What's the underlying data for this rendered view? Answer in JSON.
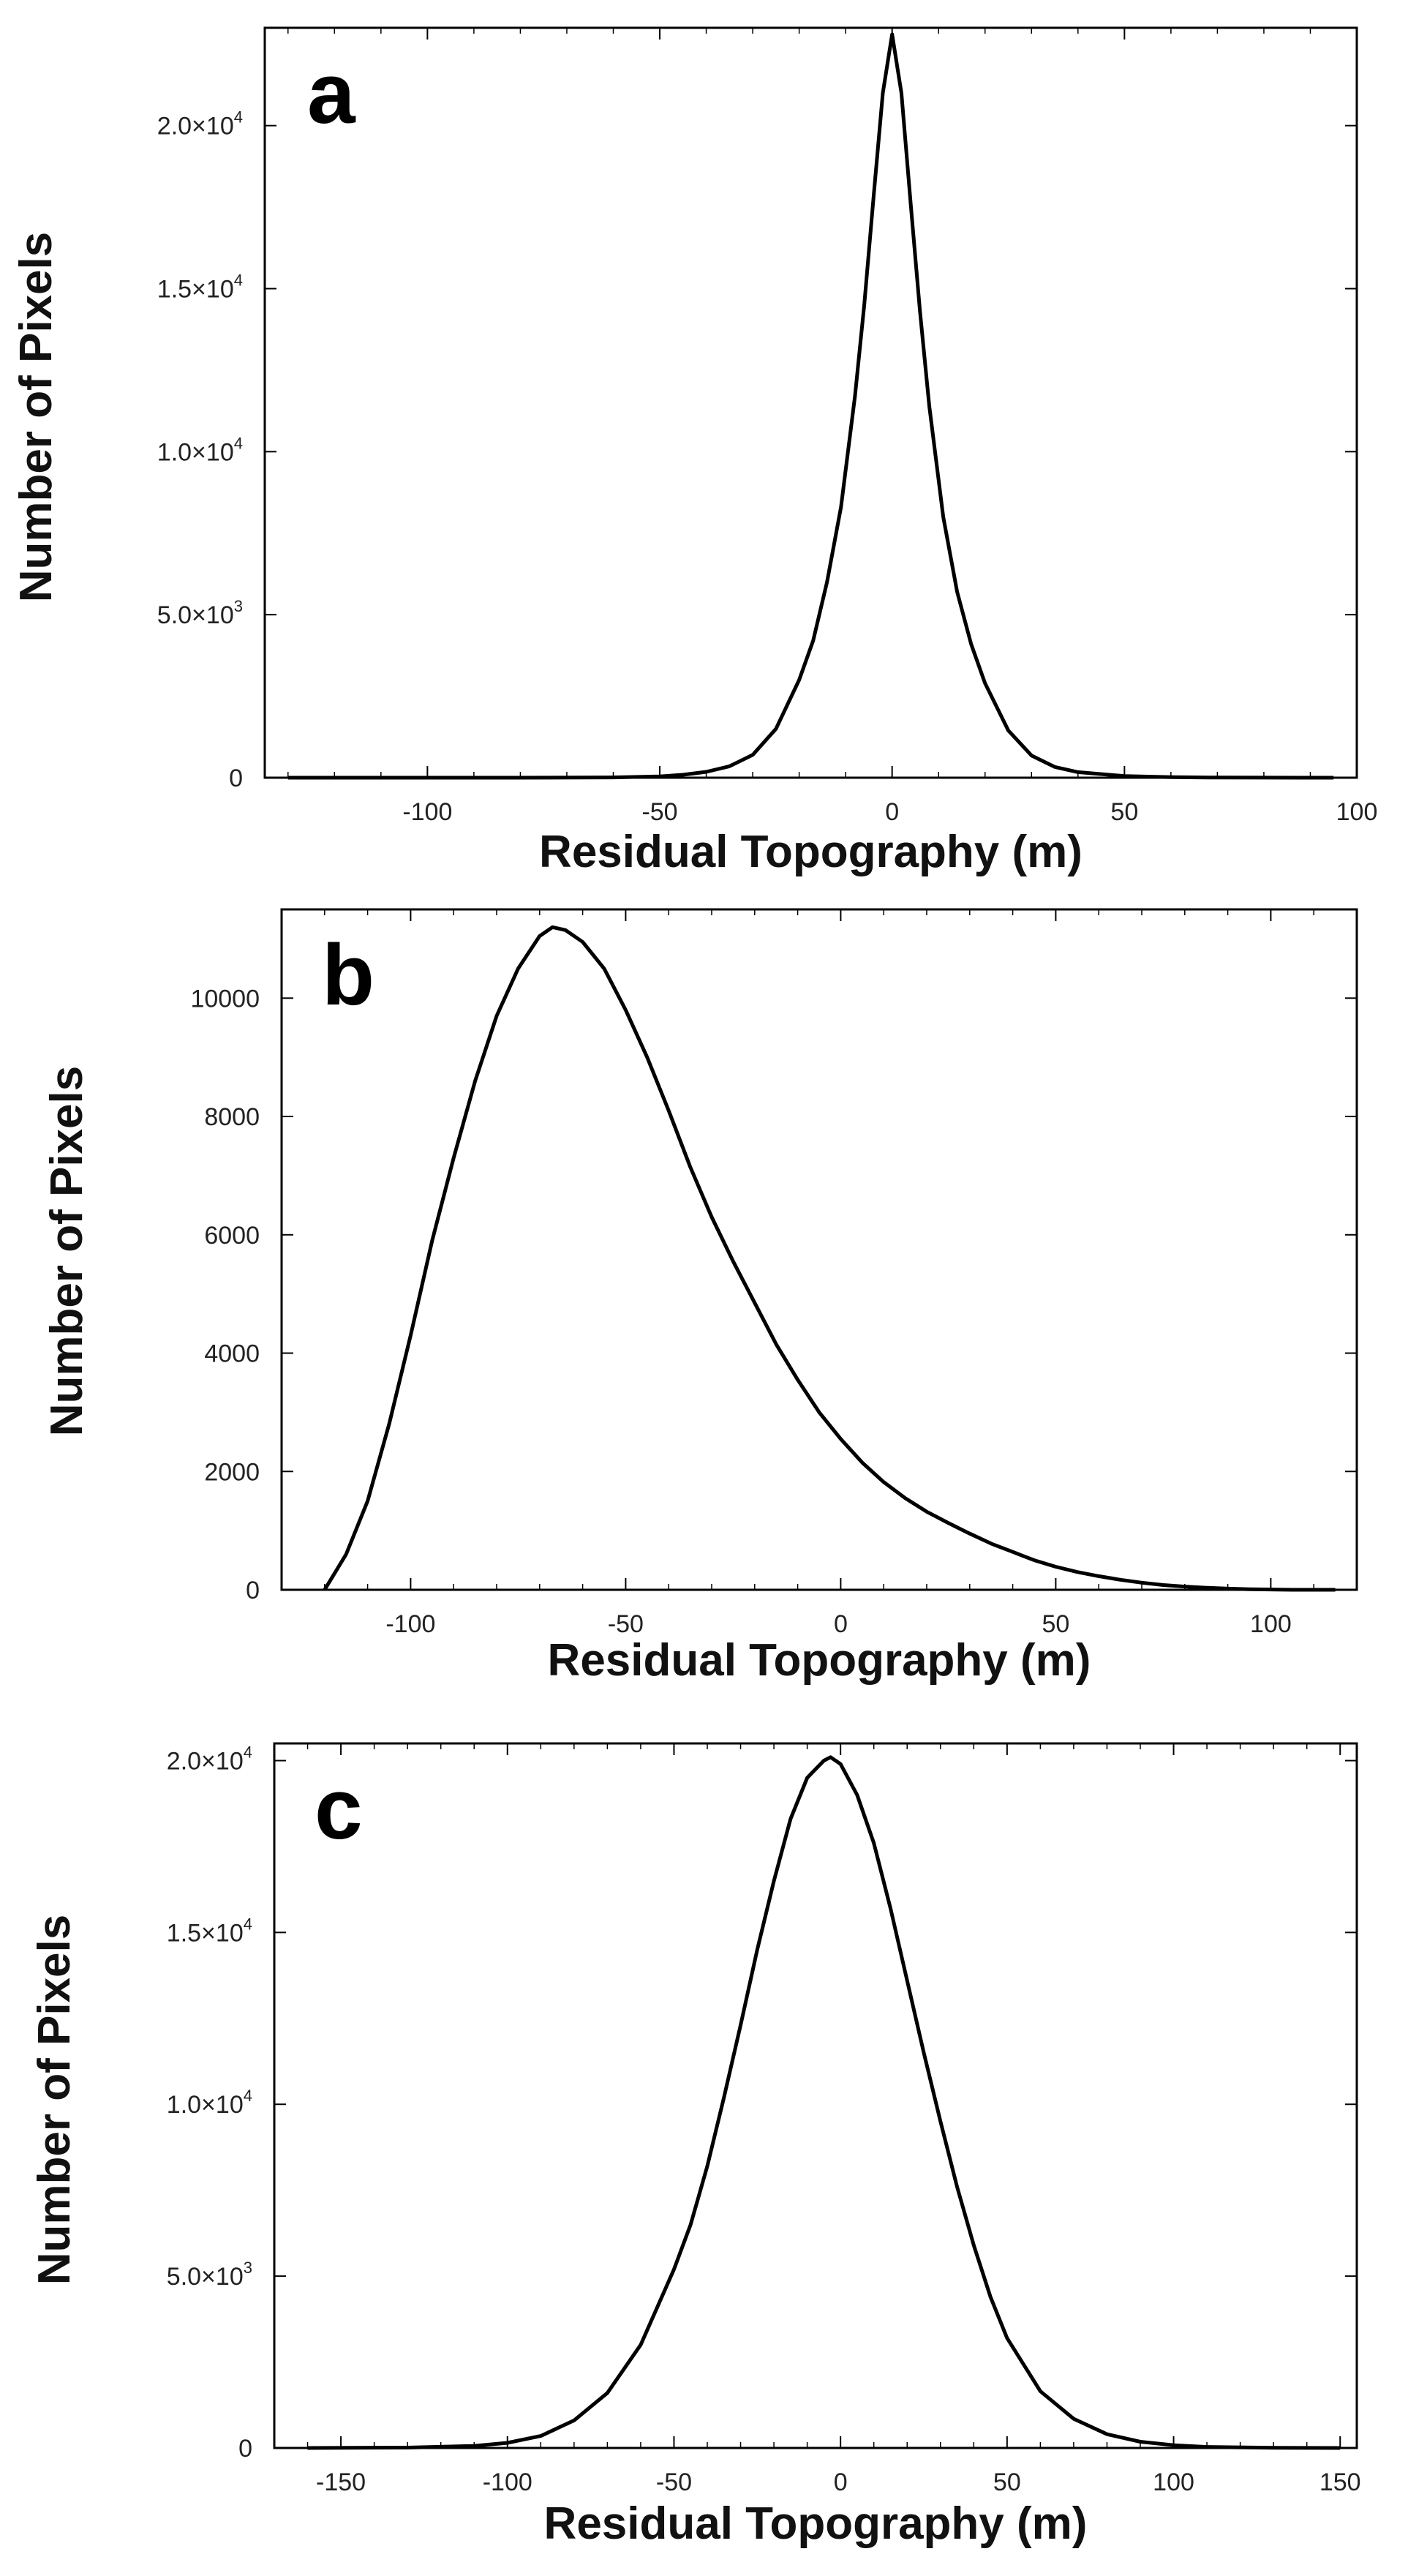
{
  "chart_data": [
    {
      "type": "line",
      "panel_label": "a",
      "xlabel": "Residual Topography (m)",
      "ylabel": "Number of Pixels",
      "xlim": [
        -135,
        100
      ],
      "ylim": [
        0,
        23000
      ],
      "xticks": [
        -100,
        -50,
        0,
        50,
        100
      ],
      "xtick_labels": [
        "-100",
        "-50",
        "0",
        "50",
        "100"
      ],
      "yticks": [
        0,
        5000,
        10000,
        15000,
        20000
      ],
      "ytick_labels": [
        {
          "text": "0",
          "mantissa": "",
          "exp": ""
        },
        {
          "text": "",
          "mantissa": "5.0×10",
          "exp": "3"
        },
        {
          "text": "",
          "mantissa": "1.0×10",
          "exp": "4"
        },
        {
          "text": "",
          "mantissa": "1.5×10",
          "exp": "4"
        },
        {
          "text": "",
          "mantissa": "2.0×10",
          "exp": "4"
        }
      ],
      "series": [
        {
          "name": "histogram",
          "x": [
            -130,
            -100,
            -80,
            -60,
            -50,
            -45,
            -40,
            -35,
            -30,
            -25,
            -20,
            -17,
            -14,
            -11,
            -8,
            -6,
            -4,
            -2,
            0,
            2,
            4,
            6,
            8,
            11,
            14,
            17,
            20,
            25,
            30,
            35,
            40,
            50,
            60,
            70,
            80,
            90,
            95
          ],
          "values": [
            0,
            0,
            0,
            10,
            40,
            90,
            180,
            350,
            700,
            1500,
            3000,
            4200,
            6000,
            8300,
            11700,
            14500,
            17800,
            21000,
            22800,
            21000,
            17600,
            14300,
            11400,
            8000,
            5700,
            4100,
            2900,
            1450,
            680,
            330,
            170,
            50,
            15,
            5,
            2,
            0,
            0
          ]
        }
      ]
    },
    {
      "type": "line",
      "panel_label": "b",
      "xlabel": "Residual Topography (m)",
      "ylabel": "Number of Pixels",
      "xlim": [
        -130,
        120
      ],
      "ylim": [
        0,
        11500
      ],
      "xticks": [
        -100,
        -50,
        0,
        50,
        100
      ],
      "xtick_labels": [
        "-100",
        "-50",
        "0",
        "50",
        "100"
      ],
      "yticks": [
        0,
        2000,
        4000,
        6000,
        8000,
        10000
      ],
      "ytick_labels": [
        {
          "text": "0",
          "mantissa": "",
          "exp": ""
        },
        {
          "text": "2000",
          "mantissa": "",
          "exp": ""
        },
        {
          "text": "4000",
          "mantissa": "",
          "exp": ""
        },
        {
          "text": "6000",
          "mantissa": "",
          "exp": ""
        },
        {
          "text": "8000",
          "mantissa": "",
          "exp": ""
        },
        {
          "text": "10000",
          "mantissa": "",
          "exp": ""
        }
      ],
      "series": [
        {
          "name": "histogram",
          "x": [
            -120,
            -115,
            -110,
            -105,
            -100,
            -95,
            -90,
            -85,
            -80,
            -75,
            -70,
            -67,
            -64,
            -60,
            -55,
            -50,
            -45,
            -40,
            -35,
            -30,
            -25,
            -20,
            -15,
            -10,
            -5,
            0,
            5,
            10,
            15,
            20,
            25,
            30,
            35,
            40,
            45,
            50,
            55,
            60,
            65,
            70,
            75,
            80,
            85,
            90,
            95,
            100,
            105,
            110,
            115
          ],
          "values": [
            0,
            600,
            1500,
            2800,
            4300,
            5900,
            7300,
            8600,
            9700,
            10500,
            11050,
            11200,
            11150,
            10950,
            10500,
            9800,
            9000,
            8100,
            7150,
            6300,
            5550,
            4850,
            4150,
            3550,
            3000,
            2550,
            2150,
            1820,
            1550,
            1320,
            1130,
            950,
            780,
            640,
            500,
            390,
            300,
            230,
            170,
            120,
            80,
            55,
            35,
            20,
            10,
            5,
            0,
            0,
            0
          ]
        }
      ]
    },
    {
      "type": "line",
      "panel_label": "c",
      "xlabel": "Residual Topography (m)",
      "ylabel": "Number of Pixels",
      "xlim": [
        -170,
        155
      ],
      "ylim": [
        0,
        20500
      ],
      "xticks": [
        -150,
        -100,
        -50,
        0,
        50,
        100,
        150
      ],
      "xtick_labels": [
        "-150",
        "-100",
        "-50",
        "0",
        "50",
        "100",
        "150"
      ],
      "yticks": [
        0,
        5000,
        10000,
        15000,
        20000
      ],
      "ytick_labels": [
        {
          "text": "0",
          "mantissa": "",
          "exp": ""
        },
        {
          "text": "",
          "mantissa": "5.0×10",
          "exp": "3"
        },
        {
          "text": "",
          "mantissa": "1.0×10",
          "exp": "4"
        },
        {
          "text": "",
          "mantissa": "1.5×10",
          "exp": "4"
        },
        {
          "text": "",
          "mantissa": "2.0×10",
          "exp": "4"
        }
      ],
      "series": [
        {
          "name": "histogram",
          "x": [
            -160,
            -130,
            -110,
            -100,
            -90,
            -80,
            -70,
            -60,
            -50,
            -45,
            -40,
            -35,
            -30,
            -25,
            -20,
            -15,
            -10,
            -5,
            -3,
            0,
            5,
            10,
            15,
            20,
            25,
            30,
            35,
            40,
            45,
            50,
            60,
            70,
            80,
            90,
            100,
            110,
            130,
            150
          ],
          "values": [
            0,
            10,
            60,
            150,
            350,
            800,
            1600,
            3000,
            5200,
            6500,
            8200,
            10200,
            12300,
            14500,
            16500,
            18300,
            19500,
            20000,
            20100,
            19900,
            19000,
            17600,
            15700,
            13600,
            11500,
            9500,
            7600,
            5900,
            4400,
            3200,
            1650,
            850,
            400,
            180,
            80,
            30,
            5,
            0
          ]
        }
      ]
    }
  ]
}
